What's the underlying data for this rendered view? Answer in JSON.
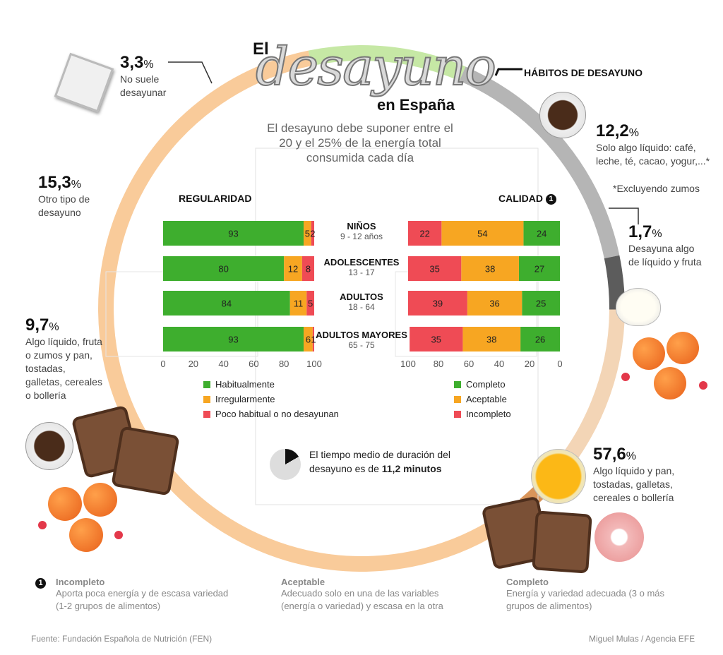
{
  "title": {
    "el": "El",
    "main": "desayuno",
    "sub": "en España"
  },
  "subtitle": [
    "El desayuno debe suponer entre el",
    "20 y el 25% de la energía total",
    "consumida cada día"
  ],
  "habits_header": "HÁBITOS DE DESAYUNO",
  "habits_footnote": "*Excluyendo zumos",
  "ring_segments": [
    {
      "id": "liquido_pan",
      "value": 57.6,
      "pct": "57,6",
      "label": [
        "Algo líquido y pan,",
        "tostadas, galletas,",
        "cereales o bollería"
      ],
      "color": "#f9cb9a"
    },
    {
      "id": "algo_liquido_fruta_pan",
      "value": 9.7,
      "pct": "9,7",
      "label": [
        "Algo líquido, fruta",
        "o zumos y pan,",
        "tostadas,",
        "galletas, cereales",
        "o bollería"
      ],
      "color": "#c6e8a5"
    },
    {
      "id": "otro_tipo",
      "value": 15.3,
      "pct": "15,3",
      "label": [
        "Otro tipo de",
        "desayuno"
      ],
      "color": "#b5b5b5"
    },
    {
      "id": "no_suele",
      "value": 3.3,
      "pct": "3,3",
      "label": [
        "No suele",
        "desayunar"
      ],
      "color": "#5c5c5c"
    },
    {
      "id": "solo_liquido",
      "value": 12.2,
      "pct": "12,2",
      "label": [
        "Solo algo líquido: café,",
        "leche, té, cacao, yogur,...*"
      ],
      "color": "#f3d5b6"
    },
    {
      "id": "liquido_fruta",
      "value": 1.7,
      "pct": "1,7",
      "label": [
        "Desayuna algo",
        "de líquido y fruta"
      ],
      "color": "#d9955a"
    }
  ],
  "chart_data": [
    {
      "type": "bar",
      "orientation": "horizontal-stacked",
      "title": "REGULARIDAD",
      "categories": [
        "NIÑOS",
        "ADOLESCENTES",
        "ADULTOS",
        "ADULTOS MAYORES"
      ],
      "age_ranges": [
        "9 - 12 años",
        "13 - 17",
        "18 - 64",
        "65 - 75"
      ],
      "series": [
        {
          "name": "Habitualmente",
          "color": "#3eae2e",
          "values": [
            93,
            80,
            84,
            93
          ]
        },
        {
          "name": "Irregularmente",
          "color": "#f7a622",
          "values": [
            5,
            12,
            11,
            6
          ]
        },
        {
          "name": "Poco habitual o no desayunan",
          "color": "#ef4b55",
          "values": [
            2,
            8,
            5,
            1
          ]
        }
      ],
      "xlim": [
        0,
        100
      ],
      "xticks": [
        "0",
        "20",
        "40",
        "60",
        "80",
        "100"
      ]
    },
    {
      "type": "bar",
      "orientation": "horizontal-stacked-reversed",
      "title": "CALIDAD",
      "title_marker": "1",
      "categories": [
        "NIÑOS",
        "ADOLESCENTES",
        "ADULTOS",
        "ADULTOS MAYORES"
      ],
      "series": [
        {
          "name": "Completo",
          "color": "#3eae2e",
          "values": [
            24,
            27,
            25,
            26
          ]
        },
        {
          "name": "Aceptable",
          "color": "#f7a622",
          "values": [
            54,
            38,
            36,
            38
          ]
        },
        {
          "name": "Incompleto",
          "color": "#ef4b55",
          "values": [
            22,
            35,
            39,
            35
          ]
        }
      ],
      "xlim": [
        100,
        0
      ],
      "xticks": [
        "100",
        "80",
        "60",
        "40",
        "20",
        "0"
      ]
    }
  ],
  "time_info": {
    "text1": "El tiempo medio de duración del",
    "text2": "desayuno es de ",
    "value": "11,2 minutos"
  },
  "notes": [
    {
      "title": "Incompleto",
      "text": [
        "Aporta poca energía y de escasa variedad",
        "(1-2 grupos de alimentos)"
      ],
      "marker": "1"
    },
    {
      "title": "Aceptable",
      "text": [
        "Adecuado solo en una de las variables",
        "(energía o variedad) y escasa en la otra"
      ]
    },
    {
      "title": "Completo",
      "text": [
        "Energía y variedad adecuada (3 o más",
        "grupos de alimentos)"
      ]
    }
  ],
  "source": "Fuente: Fundación Española de Nutrición (FEN)",
  "credit": "Miguel Mulas / Agencia EFE"
}
